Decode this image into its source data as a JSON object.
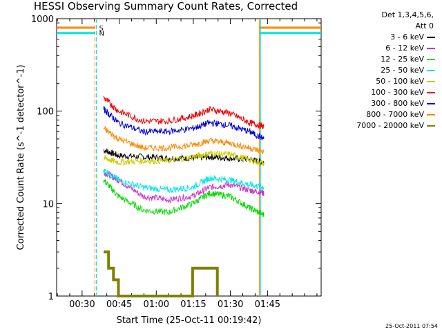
{
  "chart_data": {
    "type": "line",
    "title": "HESSI Observing Summary Count Rates, Corrected",
    "xlabel": "Start Time (25-Oct-11 00:19:42)",
    "ylabel": "Corrected Count Rate (s^-1 detector^-1)",
    "yscale": "log",
    "ylim": [
      1,
      1000
    ],
    "xlim_minutes": [
      0,
      107
    ],
    "yticks": [
      "1",
      "10",
      "100",
      "1000"
    ],
    "xticks": [
      {
        "label": "00:30",
        "minute": 10.3
      },
      {
        "label": "00:45",
        "minute": 25.3
      },
      {
        "label": "01:00",
        "minute": 40.3
      },
      {
        "label": "01:15",
        "minute": 55.3
      },
      {
        "label": "01:30",
        "minute": 70.3
      },
      {
        "label": "01:45",
        "minute": 85.3
      }
    ],
    "legend_header": [
      "Det 1,3,4,5,6,",
      "Att 0"
    ],
    "series": [
      {
        "name": "3 - 6 keV",
        "color": "#000000",
        "x": [
          19,
          25,
          35,
          45,
          55,
          62,
          70,
          78,
          84
        ],
        "y": [
          38,
          33,
          32,
          31,
          31,
          32,
          31,
          30,
          28
        ]
      },
      {
        "name": "6 - 12 keV",
        "color": "#cc33cc",
        "x": [
          19,
          25,
          35,
          45,
          55,
          62,
          70,
          78,
          84
        ],
        "y": [
          22,
          18,
          12,
          11,
          12,
          15,
          16,
          14,
          13
        ]
      },
      {
        "name": "12 - 25 keV",
        "color": "#00dd00",
        "x": [
          19,
          25,
          35,
          45,
          55,
          62,
          70,
          78,
          84
        ],
        "y": [
          18,
          12,
          8.5,
          8,
          10,
          13,
          12,
          9,
          7.5
        ]
      },
      {
        "name": "25 - 50 keV",
        "color": "#00e5e5",
        "x": [
          19,
          25,
          35,
          45,
          55,
          62,
          70,
          78,
          84
        ],
        "y": [
          23,
          18,
          15,
          14,
          15,
          19,
          18,
          16,
          15
        ]
      },
      {
        "name": "50 - 100 keV",
        "color": "#cccc00",
        "x": [
          19,
          25,
          35,
          45,
          55,
          62,
          70,
          78,
          84
        ],
        "y": [
          31,
          28,
          29,
          29,
          32,
          35,
          34,
          30,
          27
        ]
      },
      {
        "name": "100 - 300 keV",
        "color": "#ee0000",
        "x": [
          19,
          25,
          35,
          45,
          55,
          62,
          70,
          78,
          84
        ],
        "y": [
          140,
          100,
          78,
          78,
          88,
          105,
          95,
          75,
          68
        ]
      },
      {
        "name": "300 - 800 keV",
        "color": "#0000dd",
        "x": [
          19,
          25,
          35,
          45,
          55,
          62,
          70,
          78,
          84
        ],
        "y": [
          105,
          75,
          60,
          60,
          65,
          75,
          70,
          60,
          50
        ]
      },
      {
        "name": "800 - 7000 keV",
        "color": "#ff8800",
        "x": [
          19,
          25,
          35,
          45,
          55,
          62,
          70,
          78,
          84
        ],
        "y": [
          65,
          50,
          40,
          40,
          43,
          48,
          45,
          40,
          36
        ]
      },
      {
        "name": "7000 - 20000 keV",
        "color": "#808000",
        "x": [
          19,
          21,
          23,
          25,
          55,
          60,
          65
        ],
        "y": [
          3,
          2,
          1.5,
          1,
          2,
          2,
          1
        ]
      }
    ],
    "flags": [
      {
        "label": "S",
        "color": "#ff8800",
        "level": 800
      },
      {
        "label": "N",
        "color": "#00e5e5",
        "level": 700
      }
    ],
    "grid": false,
    "legend_position": "right"
  },
  "timestamp": "25-Oct-2011 07:54"
}
